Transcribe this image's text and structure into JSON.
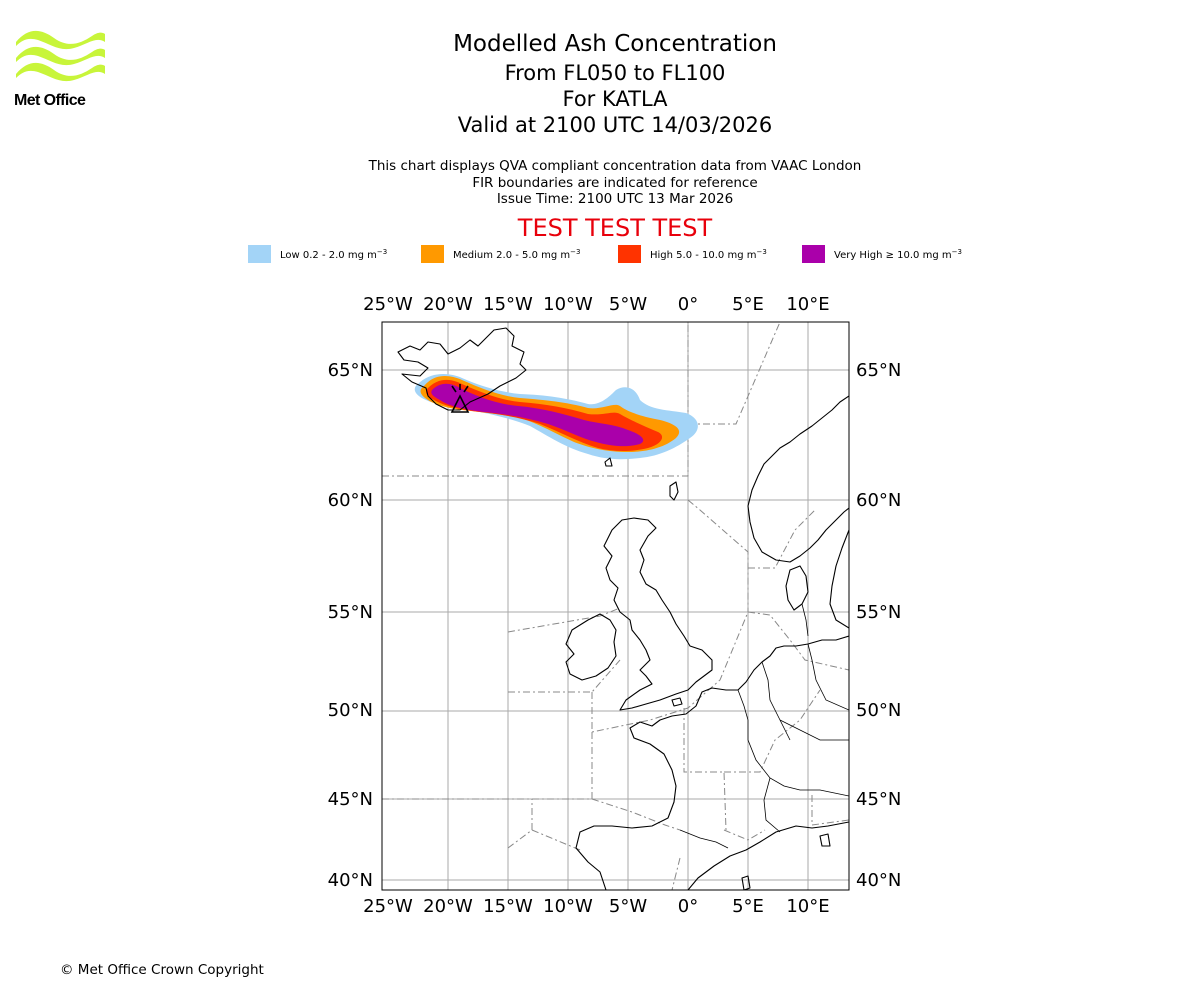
{
  "logo": {
    "text": "Met Office",
    "color": "#c8f53a"
  },
  "title": {
    "main": "Modelled Ash Concentration",
    "levels": "From FL050 to FL100",
    "volcano": "For KATLA",
    "valid": "Valid at 2100 UTC 14/03/2026"
  },
  "notes": {
    "line1": "This chart displays QVA compliant concentration data from VAAC London",
    "line2": "FIR boundaries are indicated for reference",
    "line3": "Issue Time: 2100 UTC 13 Mar 2026"
  },
  "test_banner": "TEST TEST TEST",
  "legend": [
    {
      "label": "Low 0.2 - 2.0 mg m",
      "color": "#a3d4f7"
    },
    {
      "label": "Medium 2.0 - 5.0 mg m",
      "color": "#ff9900"
    },
    {
      "label": "High 5.0 - 10.0 mg m",
      "color": "#ff3300"
    },
    {
      "label": "Very High ≥ 10.0 mg m",
      "color": "#aa00aa"
    }
  ],
  "legend_unit_exponent": "−3",
  "map": {
    "lon_labels": [
      "25°W",
      "20°W",
      "15°W",
      "10°W",
      "5°W",
      "0°",
      "5°E",
      "10°E"
    ],
    "lat_labels": [
      "65°N",
      "60°N",
      "55°N",
      "50°N",
      "45°N",
      "40°N"
    ],
    "gridline_color": "#aaaaaa",
    "fir_line_color": "#888888"
  },
  "copyright": "© Met Office Crown Copyright"
}
